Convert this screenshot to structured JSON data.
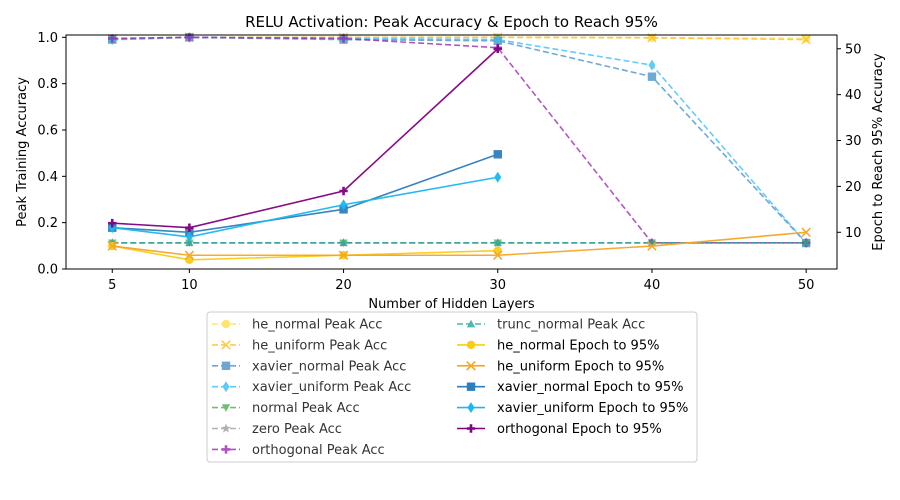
{
  "chart_data": {
    "type": "line",
    "title": "RELU Activation: Peak Accuracy & Epoch to Reach 95%",
    "xlabel": "Number of Hidden Layers",
    "ylabel_left": "Peak Training Accuracy",
    "ylabel_right": "Epoch to Reach 95% Accuracy",
    "x_ticks": [
      5,
      10,
      20,
      30,
      40,
      50
    ],
    "xlim": [
      2,
      52
    ],
    "ylim_left": [
      0,
      1.01
    ],
    "yticks_left": [
      "0.0",
      "0.2",
      "0.4",
      "0.6",
      "0.8",
      "1.0"
    ],
    "ylim_right": [
      2,
      53
    ],
    "yticks_right": [
      10,
      20,
      30,
      40,
      50
    ],
    "legend": {
      "placement": "below",
      "columns": 2
    },
    "series": [
      {
        "name": "he_normal Peak Acc",
        "axis": "left",
        "style": "dashed",
        "marker": "circle",
        "color": "#fde047",
        "x": [
          5,
          10,
          20,
          30,
          40,
          50
        ],
        "values": [
          0.995,
          1.0,
          1.0,
          1.0,
          0.998,
          0.995
        ]
      },
      {
        "name": "he_uniform Peak Acc",
        "axis": "left",
        "style": "dashed",
        "marker": "x",
        "color": "#fbbf24",
        "x": [
          5,
          10,
          20,
          30,
          40,
          50
        ],
        "values": [
          0.995,
          1.0,
          1.0,
          1.0,
          0.998,
          0.99
        ]
      },
      {
        "name": "xavier_normal Peak Acc",
        "axis": "left",
        "style": "dashed",
        "marker": "square",
        "color": "#4a90c8",
        "x": [
          5,
          10,
          20,
          30,
          40,
          50
        ],
        "values": [
          0.99,
          1.0,
          0.99,
          0.985,
          0.83,
          0.112
        ]
      },
      {
        "name": "xavier_uniform Peak Acc",
        "axis": "left",
        "style": "dashed",
        "marker": "diamond",
        "color": "#38bdf8",
        "x": [
          5,
          10,
          20,
          30,
          40,
          50
        ],
        "values": [
          0.99,
          1.0,
          0.995,
          0.99,
          0.88,
          0.112
        ]
      },
      {
        "name": "normal Peak Acc",
        "axis": "left",
        "style": "dashed",
        "marker": "triangle-down",
        "color": "#4caf50",
        "x": [
          5,
          10,
          20,
          30,
          40,
          50
        ],
        "values": [
          0.113,
          0.113,
          0.113,
          0.113,
          0.113,
          0.113
        ]
      },
      {
        "name": "zero Peak Acc",
        "axis": "left",
        "style": "dashed",
        "marker": "star",
        "color": "#9e9e9e",
        "x": [
          5,
          10,
          20,
          30,
          40,
          50
        ],
        "values": [
          0.113,
          0.113,
          0.113,
          0.113,
          0.113,
          0.113
        ]
      },
      {
        "name": "orthogonal Peak Acc",
        "axis": "left",
        "style": "dashed",
        "marker": "plus",
        "color": "#9c27b0",
        "x": [
          5,
          10,
          20,
          30,
          40,
          50
        ],
        "values": [
          0.995,
          1.0,
          0.995,
          0.955,
          0.113,
          0.113
        ]
      },
      {
        "name": "trunc_normal Peak Acc",
        "axis": "left",
        "style": "dashed",
        "marker": "triangle-up",
        "color": "#26a69a",
        "x": [
          5,
          10,
          20,
          30,
          40,
          50
        ],
        "values": [
          0.113,
          0.113,
          0.113,
          0.113,
          0.113,
          0.113
        ]
      },
      {
        "name": "he_normal Epoch to 95%",
        "axis": "right",
        "style": "solid",
        "marker": "circle",
        "color": "#facc15",
        "x": [
          5,
          10,
          20,
          30
        ],
        "values": [
          7,
          4,
          5,
          6
        ]
      },
      {
        "name": "he_uniform Epoch to 95%",
        "axis": "right",
        "style": "solid",
        "marker": "x",
        "color": "#f5a623",
        "x": [
          5,
          10,
          20,
          30,
          40,
          50
        ],
        "values": [
          7,
          5,
          5,
          5,
          7,
          10
        ]
      },
      {
        "name": "xavier_normal Epoch to 95%",
        "axis": "right",
        "style": "solid",
        "marker": "square",
        "color": "#2e7fbf",
        "x": [
          5,
          10,
          20,
          30
        ],
        "values": [
          11,
          10,
          15,
          27
        ]
      },
      {
        "name": "xavier_uniform Epoch to 95%",
        "axis": "right",
        "style": "solid",
        "marker": "diamond",
        "color": "#1ab8f0",
        "x": [
          5,
          10,
          20,
          30
        ],
        "values": [
          11,
          9,
          16,
          22
        ]
      },
      {
        "name": "orthogonal Epoch to 95%",
        "axis": "right",
        "style": "solid",
        "marker": "plus",
        "color": "#800080",
        "x": [
          5,
          10,
          20,
          30
        ],
        "values": [
          12,
          11,
          19,
          50
        ]
      }
    ]
  }
}
